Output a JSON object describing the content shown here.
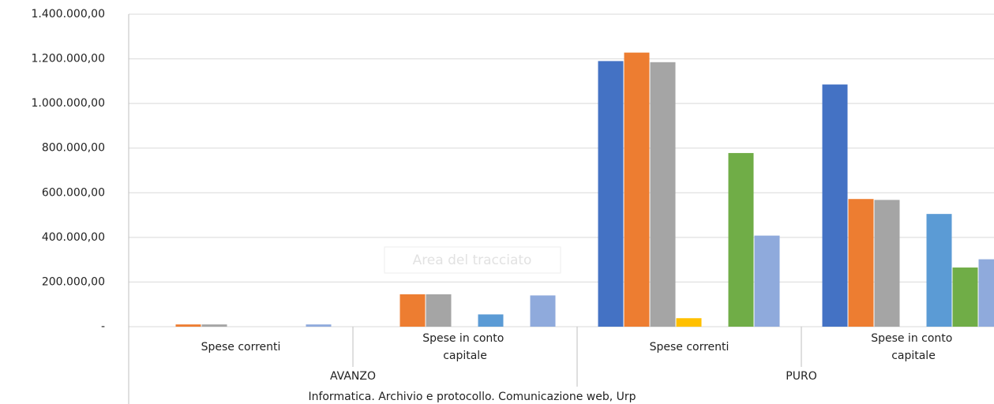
{
  "chart_data": {
    "type": "bar",
    "categories": [
      "Spese correnti",
      "Spese in conto capitale",
      "Spese correnti",
      "Spese in conto capitale"
    ],
    "category_groups": [
      "AVANZO",
      "PURO"
    ],
    "category_title": "Informatica. Archivio e protocollo. Comunicazione web, Urp",
    "annotation": "Area del tracciato",
    "series": [
      {
        "color": "#4472c4",
        "values": [
          0,
          0,
          1190000,
          1085000
        ]
      },
      {
        "color": "#ed7d31",
        "values": [
          10000,
          145000,
          1228000,
          572000
        ]
      },
      {
        "color": "#a5a5a5",
        "values": [
          10000,
          145000,
          1185000,
          568000
        ]
      },
      {
        "color": "#ffc000",
        "values": [
          0,
          0,
          38000,
          0
        ]
      },
      {
        "color": "#5b9bd5",
        "values": [
          0,
          55000,
          0,
          505000
        ]
      },
      {
        "color": "#70ad47",
        "values": [
          0,
          0,
          778000,
          265000
        ]
      },
      {
        "color": "#8faadc",
        "values": [
          10000,
          140000,
          408000,
          302000
        ]
      }
    ],
    "ylim": [
      0,
      1400000
    ],
    "yticks": [
      {
        "value": 0,
        "label": "-"
      },
      {
        "value": 200000,
        "label": "200.000,00"
      },
      {
        "value": 400000,
        "label": "400.000,00"
      },
      {
        "value": 600000,
        "label": "600.000,00"
      },
      {
        "value": 800000,
        "label": "800.000,00"
      },
      {
        "value": 1000000,
        "label": "1.000.000,00"
      },
      {
        "value": 1200000,
        "label": "1.200.000,00"
      },
      {
        "value": 1400000,
        "label": "1.400.000,00"
      }
    ],
    "grid": true
  }
}
